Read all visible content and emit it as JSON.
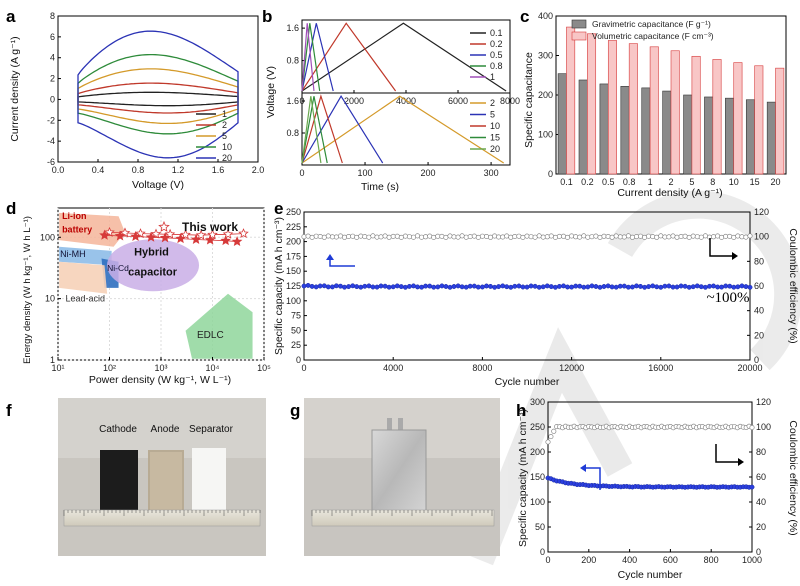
{
  "colors": {
    "c1": "#222222",
    "c2": "#c0392b",
    "c5": "#d49a2a",
    "c10": "#2e8b3a",
    "c20": "#2b33b5",
    "pink": "#f8c6c6",
    "red": "#d63a3a",
    "blue": "#1f3bd6"
  },
  "panels": {
    "a": {
      "label": "a",
      "xlabel": "Voltage (V)",
      "ylabel": "Current density (A g⁻¹)"
    },
    "b": {
      "label": "b",
      "xlabel": "Time (s)",
      "ylabel": "Voltage (V)"
    },
    "c": {
      "label": "c",
      "xlabel": "Current density (A g⁻¹)",
      "ylabel": "Specific capacitance"
    },
    "d": {
      "label": "d",
      "xlabel": "Power density (W kg⁻¹, W L⁻¹)",
      "ylabel": "Energy density (W h kg⁻¹, W h L⁻¹)"
    },
    "e": {
      "label": "e",
      "xlabel": "Cycle number",
      "ylabel": "Specific capacity (mA h cm⁻³)",
      "ylabel2": "Coulombic efficiency (%)",
      "annotation": "~100%"
    },
    "f": {
      "label": "f",
      "photo_labels": [
        "Cathode",
        "Anode",
        "Separator"
      ]
    },
    "g": {
      "label": "g"
    },
    "h": {
      "label": "h",
      "xlabel": "Cycle number",
      "ylabel": "Specific capacity (mA h cm⁻³)",
      "ylabel2": "Coulombic efficiency (%)"
    }
  },
  "chart_data": [
    {
      "id": "a",
      "type": "line",
      "title": "",
      "xlabel": "Voltage (V)",
      "ylabel": "Current density (A g⁻¹)",
      "xlim": [
        0,
        2.0
      ],
      "ylim": [
        -6,
        8
      ],
      "xticks": [
        0,
        0.4,
        0.8,
        1.2,
        1.6,
        2.0
      ],
      "yticks": [
        -6,
        -4,
        -2,
        0,
        2,
        4,
        6,
        8
      ],
      "series": [
        {
          "name": "1",
          "color": "#222222",
          "peak": 0.7,
          "min": -0.6
        },
        {
          "name": "2",
          "color": "#c0392b",
          "peak": 1.6,
          "min": -1.3
        },
        {
          "name": "5",
          "color": "#d49a2a",
          "peak": 3.0,
          "min": -2.3
        },
        {
          "name": "10",
          "color": "#2e8b3a",
          "peak": 4.4,
          "min": -3.3
        },
        {
          "name": "20",
          "color": "#2b33b5",
          "peak": 6.7,
          "min": -5.6
        }
      ],
      "v_range": [
        0.2,
        1.8
      ]
    },
    {
      "id": "b_top",
      "type": "line",
      "xlabel": "",
      "ylabel": "Voltage (V)",
      "xlim": [
        0,
        8000
      ],
      "ylim": [
        0,
        1.8
      ],
      "xticks": [
        0,
        2000,
        4000,
        6000,
        8000
      ],
      "yticks": [
        0.8,
        1.6
      ],
      "series": [
        {
          "name": "0.1",
          "color": "#222222",
          "charge_end": 3900,
          "discharge_end": 7850
        },
        {
          "name": "0.2",
          "color": "#c0392b",
          "charge_end": 1700,
          "discharge_end": 3600
        },
        {
          "name": "0.5",
          "color": "#2b33b5",
          "charge_end": 550,
          "discharge_end": 1200
        },
        {
          "name": "0.8",
          "color": "#2e8b3a",
          "charge_end": 300,
          "discharge_end": 680
        },
        {
          "name": "1",
          "color": "#a04fb8",
          "charge_end": 200,
          "discharge_end": 460
        }
      ]
    },
    {
      "id": "b_bottom",
      "type": "line",
      "xlabel": "Time (s)",
      "ylabel": "Voltage (V)",
      "xlim": [
        0,
        330
      ],
      "ylim": [
        0,
        1.8
      ],
      "xticks": [
        0,
        100,
        200,
        300
      ],
      "yticks": [
        0.8,
        1.6
      ],
      "series": [
        {
          "name": "2",
          "color": "#d49a2a",
          "charge_end": 155,
          "discharge_end": 320
        },
        {
          "name": "5",
          "color": "#2b33b5",
          "charge_end": 62,
          "discharge_end": 128
        },
        {
          "name": "10",
          "color": "#c0392b",
          "charge_end": 30,
          "discharge_end": 64
        },
        {
          "name": "15",
          "color": "#2e8b3a",
          "charge_end": 19,
          "discharge_end": 40
        },
        {
          "name": "20",
          "color": "#6aa84f",
          "charge_end": 14,
          "discharge_end": 30
        }
      ]
    },
    {
      "id": "c",
      "type": "bar",
      "xlabel": "Current density (A g⁻¹)",
      "ylabel": "Specific capacitance",
      "ylim": [
        0,
        400
      ],
      "yticks": [
        0,
        100,
        200,
        300,
        400
      ],
      "categories": [
        "0.1",
        "0.2",
        "0.5",
        "0.8",
        "1",
        "2",
        "5",
        "8",
        "10",
        "15",
        "20"
      ],
      "series": [
        {
          "name": "Gravimetric capacitance (F g⁻¹)",
          "color": "#888888",
          "values": [
            254,
            238,
            228,
            222,
            218,
            210,
            200,
            195,
            192,
            188,
            182
          ]
        },
        {
          "name": "Volumetric capacitance (F cm⁻³)",
          "color": "#f8c6c6",
          "values": [
            372,
            355,
            338,
            330,
            322,
            312,
            298,
            290,
            282,
            274,
            268
          ]
        }
      ]
    },
    {
      "id": "d",
      "type": "scatter",
      "xlabel": "Power density (W kg⁻¹, W L⁻¹)",
      "ylabel": "Energy density (W h kg⁻¹, W h L⁻¹)",
      "xscale": "log",
      "yscale": "log",
      "xlim": [
        10,
        100000
      ],
      "ylim": [
        1,
        300
      ],
      "xtick_labels": [
        "10¹",
        "10²",
        "10³",
        "10⁴",
        "10⁵"
      ],
      "ytick_labels": [
        "1",
        "10",
        "100"
      ],
      "regions": [
        "Li-ion battery",
        "Ni-MH",
        "Ni-Cd",
        "Hybrid capacitor",
        "Lead-acid",
        "EDLC"
      ],
      "legend_label": "This work",
      "series": [
        {
          "name": "This work (gravimetric)",
          "marker": "open-star",
          "x": [
            100,
            200,
            400,
            800,
            1500,
            3000,
            6000,
            10000,
            20000,
            40000
          ],
          "y": [
            120,
            118,
            115,
            113,
            112,
            110,
            108,
            110,
            112,
            115
          ]
        },
        {
          "name": "This work (volumetric)",
          "marker": "filled-star",
          "x": [
            80,
            160,
            320,
            640,
            1200,
            2400,
            4800,
            9000,
            18000,
            30000
          ],
          "y": [
            108,
            105,
            103,
            100,
            98,
            95,
            92,
            90,
            88,
            85
          ]
        }
      ]
    },
    {
      "id": "e",
      "type": "scatter",
      "xlabel": "Cycle number",
      "ylabel": "Specific capacity (mA h cm⁻³)",
      "ylabel2": "Coulombic efficiency (%)",
      "xlim": [
        0,
        20000
      ],
      "ylim": [
        0,
        250
      ],
      "ylim2": [
        0,
        120
      ],
      "xticks": [
        0,
        4000,
        8000,
        12000,
        16000,
        20000
      ],
      "yticks": [
        0,
        25,
        50,
        75,
        100,
        125,
        150,
        175,
        200,
        225,
        250
      ],
      "yticks2": [
        0,
        20,
        40,
        60,
        80,
        100,
        120
      ],
      "capacity": {
        "start": 125,
        "end": 124
      },
      "efficiency": 100
    },
    {
      "id": "h",
      "type": "scatter",
      "xlabel": "Cycle number",
      "ylabel": "Specific capacity (mA h cm⁻³)",
      "ylabel2": "Coulombic efficiency (%)",
      "xlim": [
        0,
        1000
      ],
      "ylim": [
        0,
        300
      ],
      "ylim2": [
        0,
        120
      ],
      "xticks": [
        0,
        200,
        400,
        600,
        800,
        1000
      ],
      "yticks": [
        0,
        50,
        100,
        150,
        200,
        250,
        300
      ],
      "yticks2": [
        0,
        20,
        40,
        60,
        80,
        100,
        120
      ],
      "capacity": {
        "start": 148,
        "end": 130
      },
      "efficiency": 100
    }
  ]
}
